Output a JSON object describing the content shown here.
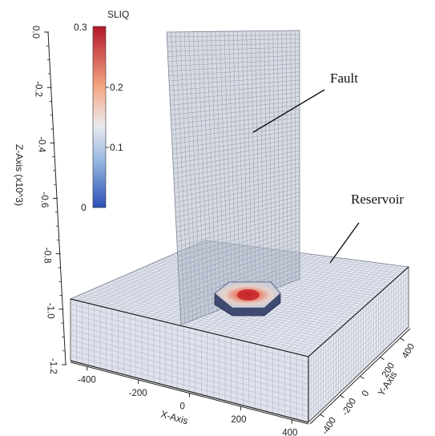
{
  "annotations": {
    "fault_label": "Fault",
    "reservoir_label": "Reservoir"
  },
  "colorbar": {
    "title": "SLIQ",
    "max_label": "0.3",
    "mid_high_label": "0.2",
    "mid_low_label": "0.1",
    "min_label": "0",
    "colors": {
      "high": "#b2182b",
      "mid": "#e8e8ee",
      "low": "#2c4fb6"
    }
  },
  "axes": {
    "z_title": "Z-Axis (x10^3)",
    "z_ticks": [
      "0.0",
      "-0.2",
      "-0.4",
      "-0.6",
      "-0.8",
      "-1.0",
      "-1.2"
    ],
    "x_title": "X-Axis",
    "x_ticks": [
      "-400",
      "-200",
      "0",
      "200",
      "400"
    ],
    "y_title": "Y-Axis",
    "y_ticks": [
      "-400",
      "-200",
      "0",
      "200",
      "400"
    ]
  }
}
